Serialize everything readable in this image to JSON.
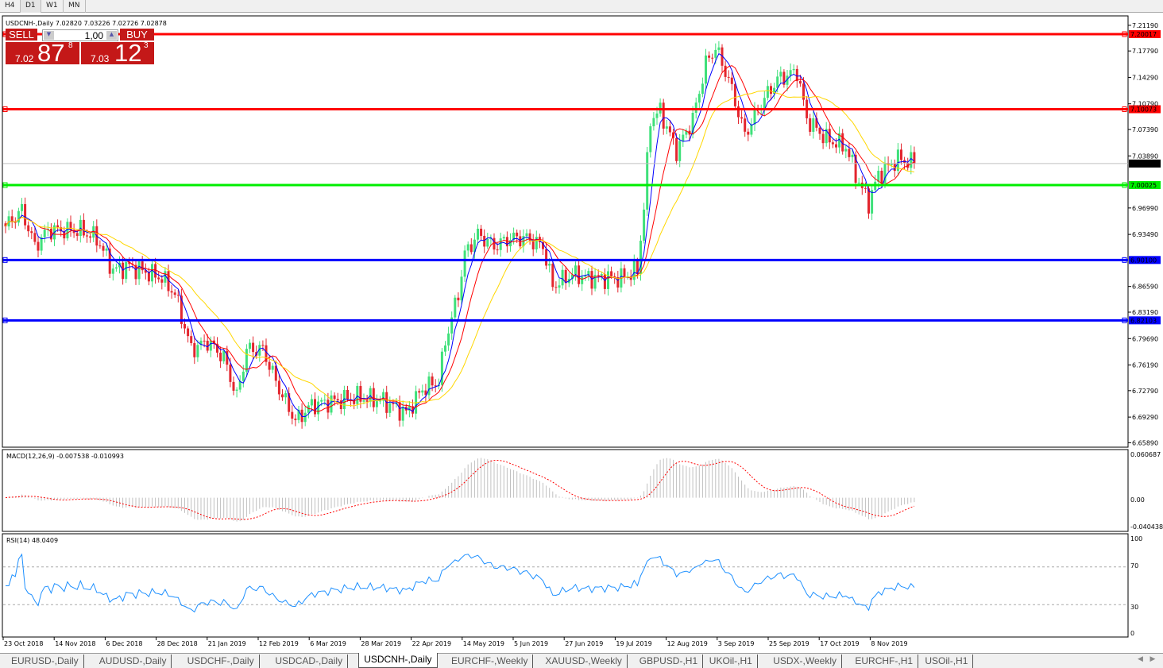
{
  "toolbar": {
    "timeframes": [
      "H4",
      "D1",
      "W1",
      "MN"
    ],
    "active": "D1"
  },
  "chart": {
    "header": "USDCNH-,Daily  7.02820 7.03226 7.02726 7.02878",
    "symbol": "USDCNH-",
    "period": "Daily",
    "ohlc": {
      "open": "7.02820",
      "high": "7.03226",
      "low": "7.02726",
      "close": "7.02878"
    },
    "trade": {
      "sell_label": "SELL",
      "buy_label": "BUY",
      "lot": "1,00",
      "sell_big": "7.02",
      "sell_pips": "87",
      "sell_frac": "8",
      "buy_big": "7.03",
      "buy_pips": "12",
      "buy_frac": "3"
    },
    "price_axis": [
      "7.21190",
      "7.17790",
      "7.14290",
      "7.10790",
      "7.07390",
      "7.03890",
      "6.96990",
      "6.93490",
      "6.86590",
      "6.83190",
      "6.79690",
      "6.76190",
      "6.72790",
      "6.69290",
      "6.65890"
    ],
    "ylim": [
      6.6589,
      7.2119
    ],
    "hlines": [
      {
        "label": "7.20017",
        "value": 7.20017,
        "color": "#ff0000"
      },
      {
        "label": "7.10073",
        "value": 7.10073,
        "color": "#ff0000"
      },
      {
        "label": "7.00025",
        "value": 7.00025,
        "color": "#00ee00"
      },
      {
        "label": "6.90100",
        "value": 6.901,
        "color": "#0000ff"
      },
      {
        "label": "6.82103",
        "value": 6.82103,
        "color": "#0000ff"
      }
    ],
    "current_price": {
      "label": "7.02878",
      "value": 7.02878
    },
    "date_axis": [
      "23 Oct 2018",
      "14 Nov 2018",
      "6 Dec 2018",
      "28 Dec 2018",
      "21 Jan 2019",
      "12 Feb 2019",
      "6 Mar 2019",
      "28 Mar 2019",
      "22 Apr 2019",
      "14 May 2019",
      "5 Jun 2019",
      "27 Jun 2019",
      "19 Jul 2019",
      "12 Aug 2019",
      "3 Sep 2019",
      "25 Sep 2019",
      "17 Oct 2019",
      "8 Nov 2019"
    ],
    "colors": {
      "bull": "#3fe07a",
      "bear": "#e3262e",
      "ma_fast": "#0000ff",
      "ma_mid": "#ff0000",
      "ma_slow": "#ffd700"
    }
  },
  "chart_data": {
    "type": "candlestick",
    "bars": 280,
    "approx_close_path": {
      "bar": [
        0,
        5,
        9,
        13,
        23,
        28,
        33,
        38,
        48,
        52,
        57,
        62,
        67,
        71,
        74,
        79,
        84,
        89,
        94,
        101,
        108,
        116,
        123,
        128,
        133,
        135,
        139,
        141,
        145,
        150,
        155,
        160,
        165,
        168,
        174,
        179,
        189,
        194,
        196,
        198,
        201,
        206,
        211,
        215,
        218,
        222,
        227,
        232,
        237,
        243,
        246,
        252,
        258,
        262,
        265,
        268,
        274,
        279
      ],
      "close": [
        6.9455,
        6.9666,
        6.9192,
        6.9403,
        6.9403,
        6.9298,
        6.8877,
        6.8929,
        6.8772,
        6.8561,
        6.7825,
        6.793,
        6.772,
        6.7194,
        6.7825,
        6.7825,
        6.7299,
        6.6878,
        6.7089,
        6.7141,
        6.7194,
        6.7141,
        6.6983,
        6.7299,
        6.7404,
        6.793,
        6.8561,
        6.9087,
        6.935,
        6.9192,
        6.9298,
        6.9298,
        6.9192,
        6.8666,
        6.8824,
        6.8772,
        6.8772,
        6.8877,
        6.9718,
        7.0876,
        7.0981,
        7.0455,
        7.0876,
        7.1612,
        7.1823,
        7.1402,
        7.0666,
        7.1087,
        7.1402,
        7.1508,
        7.0876,
        7.0613,
        7.0508,
        7.0034,
        6.9771,
        7.0139,
        7.035,
        7.02878
      ]
    }
  },
  "macd": {
    "label": "MACD(12,26,9) -0.007538 -0.010993",
    "axis": [
      "0.060687",
      "0.00",
      "-0.040438"
    ],
    "ylim": [
      -0.040438,
      0.060687
    ]
  },
  "rsi": {
    "label": "RSI(14) 48.0409",
    "axis": [
      "100",
      "70",
      "30",
      "0"
    ],
    "levels": [
      70,
      30
    ]
  },
  "tabs": [
    "EURUSD-,Daily",
    "AUDUSD-,Daily",
    "USDCHF-,Daily",
    "USDCAD-,Daily",
    "USDCNH-,Daily",
    "EURCHF-,Weekly",
    "XAUUSD-,Weekly",
    "GBPUSD-,H1",
    "UKOil-,H1",
    "USDX-,Weekly",
    "EURCHF-,H1",
    "USOil-,H1"
  ],
  "active_tab": "USDCNH-,Daily"
}
